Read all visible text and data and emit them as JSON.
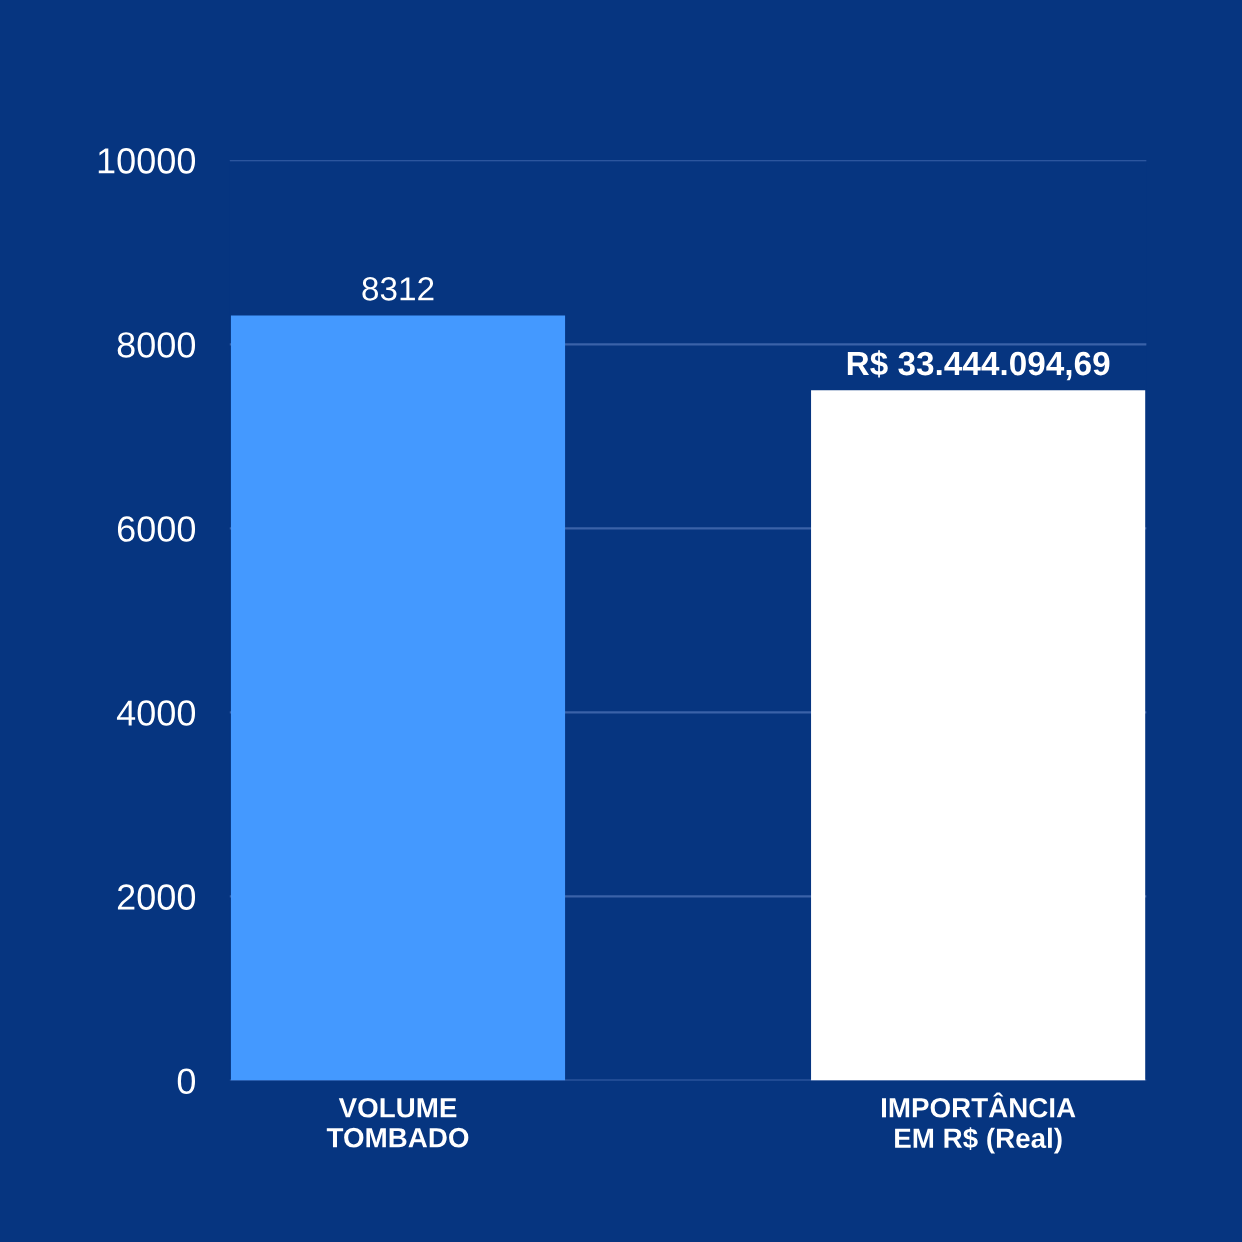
{
  "chart_data": {
    "type": "bar",
    "categories": [
      "VOLUME\nTOMBADO",
      "IMPORTÂNCIA\nEM R$ (Real)"
    ],
    "values": [
      8312,
      7500
    ],
    "colors": [
      "#4499ff",
      "#ffffff"
    ],
    "value_labels": [
      "8312",
      "R$ 33.444.094,69"
    ],
    "ylim": [
      0,
      10000
    ],
    "yticks": [
      0,
      2000,
      4000,
      6000,
      8000,
      10000
    ],
    "grid": "y"
  }
}
